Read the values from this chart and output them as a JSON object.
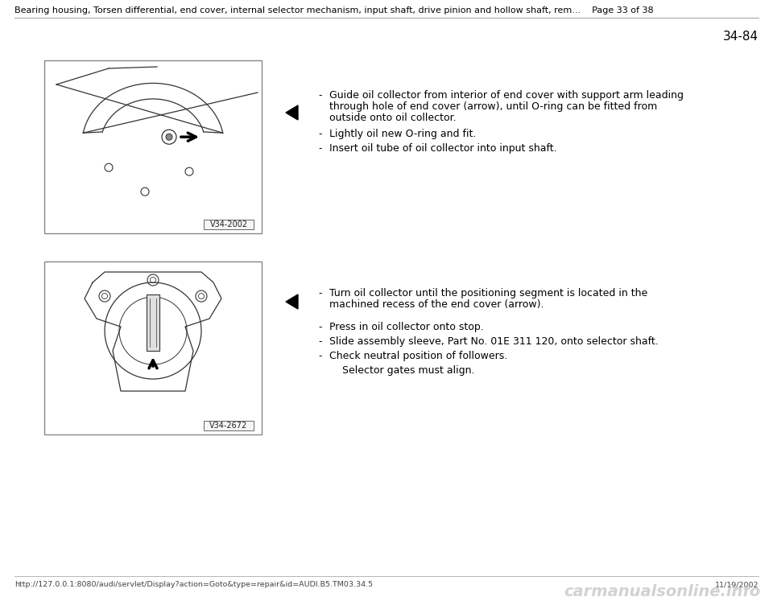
{
  "bg_color": "#ffffff",
  "header_text": "Bearing housing, Torsen differential, end cover, internal selector mechanism, input shaft, drive pinion and hollow shaft, rem...    Page 33 of 38",
  "header_fontsize": 8.0,
  "page_num": "34-84",
  "page_num_fontsize": 11,
  "footer_url": "http://127.0.0.1:8080/audi/servlet/Display?action=Goto&type=repair&id=AUDI.B5.TM03.34.5",
  "footer_date": "11/19/2002",
  "footer_brand": "carmanualsonline.info",
  "section1_bullet1_line1": "Guide oil collector from interior of end cover with support arm leading",
  "section1_bullet1_line2": "through hole of end cover (arrow), until O-ring can be fitted from",
  "section1_bullet1_line3": "outside onto oil collector.",
  "section1_bullet2": "Lightly oil new O-ring and fit.",
  "section1_bullet3": "Insert oil tube of oil collector into input shaft.",
  "section2_bullet1_line1": "Turn oil collector until the positioning segment is located in the",
  "section2_bullet1_line2": "machined recess of the end cover (arrow).",
  "section2_bullet2": "Press in oil collector onto stop.",
  "section2_bullet3": "Slide assembly sleeve, Part No. 01E 311 120, onto selector shaft.",
  "section2_bullet4": "Check neutral position of followers.",
  "section2_note": "    Selector gates must align.",
  "image1_label": "V34-2002",
  "image2_label": "V34-2672",
  "separator_color": "#aaaaaa",
  "text_color": "#000000",
  "img_border_color": "#888888",
  "img_bg": "#ffffff",
  "img_line_color": "#333333"
}
